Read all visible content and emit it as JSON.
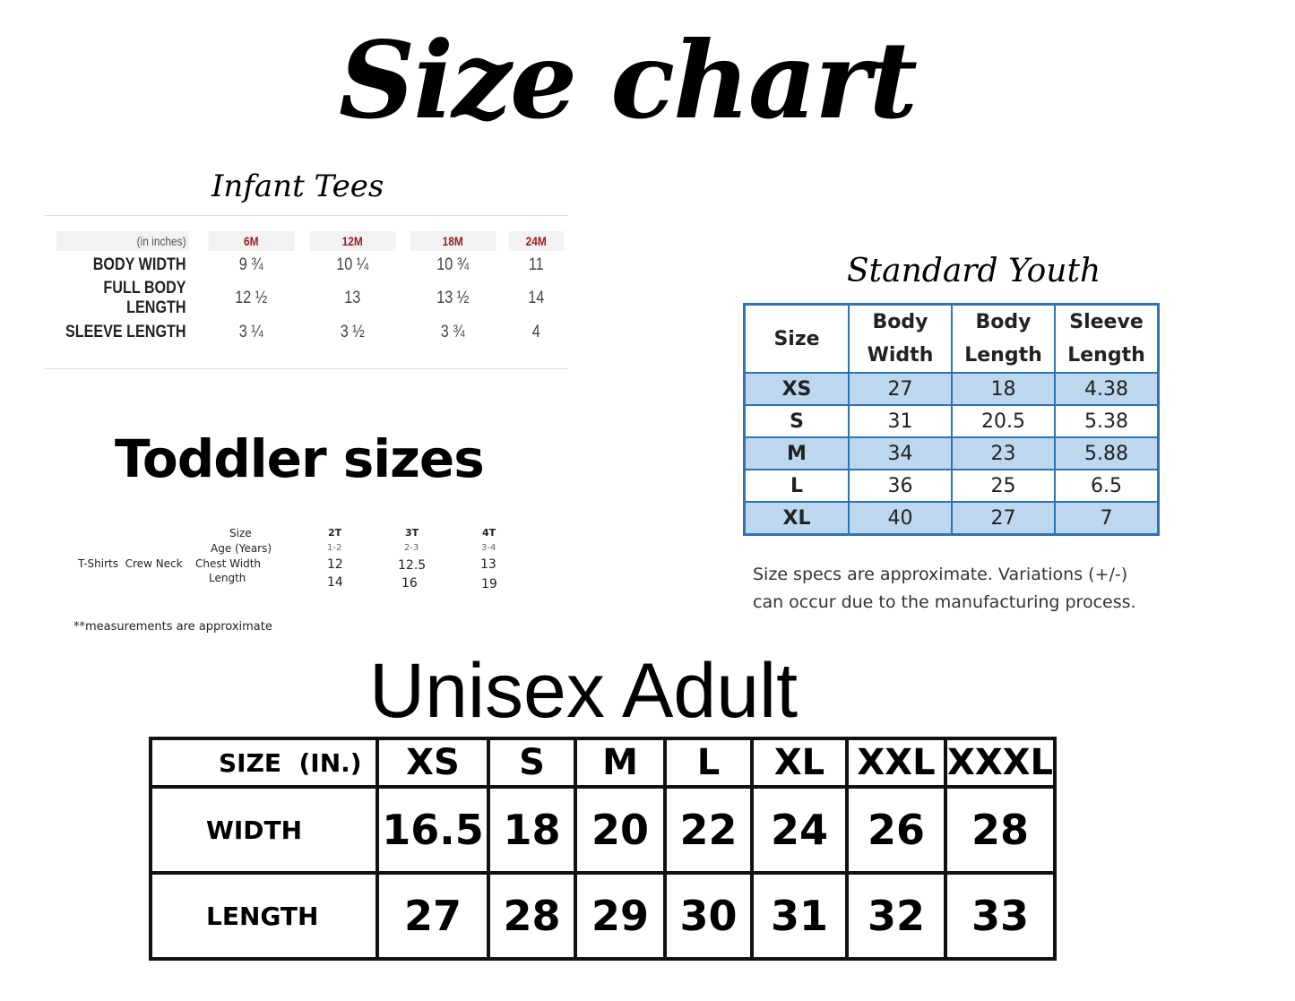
{
  "title": "Size chart",
  "infant": {
    "title": "Infant Tees",
    "unit_label": "(in inches)",
    "sizes": [
      "6M",
      "12M",
      "18M",
      "24M"
    ],
    "rows": [
      {
        "label": "BODY WIDTH",
        "values": [
          "9 ¾",
          "10 ¼",
          "10 ¾",
          "11"
        ]
      },
      {
        "label": "FULL BODY LENGTH",
        "values": [
          "12 ½",
          "13",
          "13 ½",
          "14"
        ]
      },
      {
        "label": "SLEEVE LENGTH",
        "values": [
          "3 ¼",
          "3 ½",
          "3 ¾",
          "4"
        ]
      }
    ],
    "header_color": "#9b1c1c"
  },
  "toddler": {
    "title": "Toddler sizes",
    "product": "T-Shirts  Crew Neck",
    "size_label": "Size",
    "age_label": "Age (Years)",
    "chest_label": "Chest Width",
    "length_label": "Length",
    "sizes": [
      "2T",
      "3T",
      "4T"
    ],
    "ages": [
      "1-2",
      "2-3",
      "3-4"
    ],
    "chest": [
      "12",
      "12.5",
      "13"
    ],
    "length": [
      "14",
      "16",
      "19"
    ],
    "note": "**measurements are approximate"
  },
  "youth": {
    "title": "Standard Youth",
    "headers": [
      "Size",
      "Body\nWidth",
      "Body\nLength",
      "Sleeve\nLength"
    ],
    "rows": [
      [
        "XS",
        "27",
        "18",
        "4.38"
      ],
      [
        "S",
        "31",
        "20.5",
        "5.38"
      ],
      [
        "M",
        "34",
        "23",
        "5.88"
      ],
      [
        "L",
        "36",
        "25",
        "6.5"
      ],
      [
        "XL",
        "40",
        "27",
        "7"
      ]
    ],
    "note_line1": "Size specs are approximate. Variations (+/-)",
    "note_line2": "can occur due to the manufacturing process.",
    "border_color": "#2e74b5",
    "shade_color": "#bdd7ee"
  },
  "adult": {
    "title": "Unisex Adult",
    "header_label": "SIZE  (IN.)",
    "sizes": [
      "XS",
      "S",
      "M",
      "L",
      "XL",
      "XXL",
      "XXXL"
    ],
    "rows": [
      {
        "label": "WIDTH",
        "values": [
          "16.5",
          "18",
          "20",
          "22",
          "24",
          "26",
          "28"
        ]
      },
      {
        "label": "LENGTH",
        "values": [
          "27",
          "28",
          "29",
          "30",
          "31",
          "32",
          "33"
        ]
      }
    ]
  }
}
